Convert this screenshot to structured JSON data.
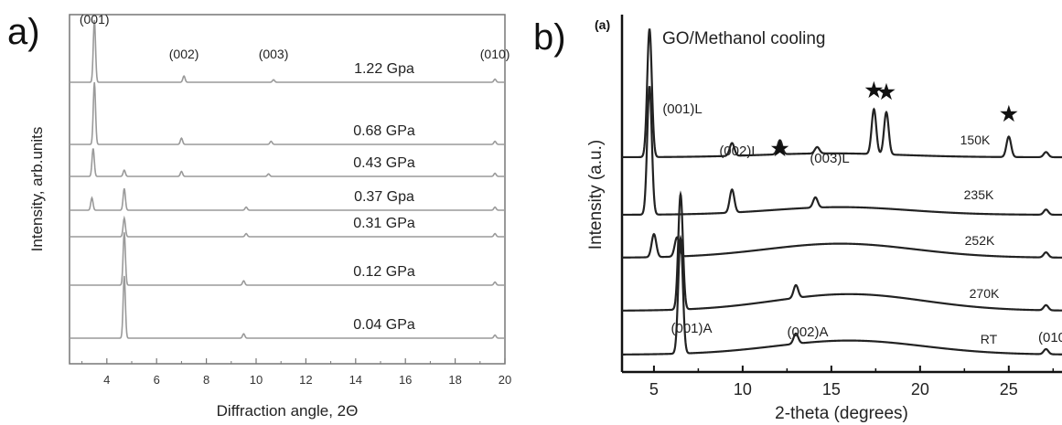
{
  "chart_data": [
    {
      "type": "line",
      "panel_label": "a)",
      "xlabel": "Diffraction angle, 2Θ",
      "ylabel": "Intensity, arb.units",
      "xlim": [
        2.5,
        20
      ],
      "xticks": [
        "4",
        "6",
        "8",
        "10",
        "12",
        "14",
        "16",
        "18",
        "20"
      ],
      "grid": false,
      "line_color": "#9a9a9a",
      "peak_labels": [
        {
          "text": "(001)",
          "x": 3.5
        },
        {
          "text": "(002)",
          "x": 7.1
        },
        {
          "text": "(003)",
          "x": 10.7
        },
        {
          "text": "(010)",
          "x": 19.6
        }
      ],
      "series": [
        {
          "label": "1.22 Gpa",
          "peaks": [
            {
              "x": 3.5,
              "h": 1.0
            },
            {
              "x": 7.1,
              "h": 0.1
            },
            {
              "x": 10.7,
              "h": 0.04
            },
            {
              "x": 19.6,
              "h": 0.05
            }
          ]
        },
        {
          "label": "0.68 GPa",
          "peaks": [
            {
              "x": 3.5,
              "h": 1.0
            },
            {
              "x": 7.0,
              "h": 0.1
            },
            {
              "x": 10.6,
              "h": 0.05
            },
            {
              "x": 19.6,
              "h": 0.05
            }
          ]
        },
        {
          "label": "0.43 GPa",
          "peaks": [
            {
              "x": 3.45,
              "h": 0.45
            },
            {
              "x": 4.7,
              "h": 0.1
            },
            {
              "x": 7.0,
              "h": 0.08
            },
            {
              "x": 10.5,
              "h": 0.04
            },
            {
              "x": 19.6,
              "h": 0.05
            }
          ]
        },
        {
          "label": "0.37 Gpa",
          "peaks": [
            {
              "x": 3.4,
              "h": 0.2
            },
            {
              "x": 4.7,
              "h": 0.35
            },
            {
              "x": 9.6,
              "h": 0.05
            },
            {
              "x": 19.6,
              "h": 0.05
            }
          ]
        },
        {
          "label": "0.31 GPa",
          "peaks": [
            {
              "x": 4.7,
              "h": 0.3
            },
            {
              "x": 9.6,
              "h": 0.05
            },
            {
              "x": 19.6,
              "h": 0.05
            }
          ]
        },
        {
          "label": "0.12 GPa",
          "peaks": [
            {
              "x": 4.7,
              "h": 0.85
            },
            {
              "x": 9.5,
              "h": 0.07
            },
            {
              "x": 19.6,
              "h": 0.05
            }
          ]
        },
        {
          "label": "0.04 GPa",
          "peaks": [
            {
              "x": 4.7,
              "h": 1.0
            },
            {
              "x": 9.5,
              "h": 0.07
            },
            {
              "x": 19.6,
              "h": 0.05
            }
          ]
        }
      ]
    },
    {
      "type": "line",
      "panel_label": "b)",
      "sub_label": "(a)",
      "title": "GO/Methanol cooling",
      "xlabel": "2-theta (degrees)",
      "ylabel": "Intensity (a.u.)",
      "xlim": [
        3.2,
        28
      ],
      "xticks": [
        "5",
        "10",
        "15",
        "20",
        "25"
      ],
      "grid": false,
      "line_color": "#222222",
      "peak_labels": [
        {
          "text": "(001)L",
          "x": 5.9
        },
        {
          "text": "(002)L",
          "x": 9.2
        },
        {
          "text": "(003)L",
          "x": 14.6
        },
        {
          "text": "(001)A",
          "x": 7.3
        },
        {
          "text": "(002)A",
          "x": 13.1
        },
        {
          "text": "(010",
          "x": 27.5
        }
      ],
      "star_markers": [
        12.1,
        17.4,
        18.1,
        25.0
      ],
      "series": [
        {
          "label": "150K",
          "peaks": [
            {
              "x": 4.75,
              "h": 1.0
            },
            {
              "x": 9.4,
              "h": 0.1
            },
            {
              "x": 12.1,
              "h": 0.11
            },
            {
              "x": 14.2,
              "h": 0.05
            },
            {
              "x": 17.4,
              "h": 0.35
            },
            {
              "x": 18.1,
              "h": 0.33
            },
            {
              "x": 25.0,
              "h": 0.16
            },
            {
              "x": 27.1,
              "h": 0.04
            }
          ]
        },
        {
          "label": "235K",
          "peaks": [
            {
              "x": 4.75,
              "h": 1.0
            },
            {
              "x": 9.4,
              "h": 0.18
            },
            {
              "x": 14.1,
              "h": 0.08
            },
            {
              "x": 27.1,
              "h": 0.04
            }
          ]
        },
        {
          "label": "252K",
          "peaks": [
            {
              "x": 5.0,
              "h": 0.18
            },
            {
              "x": 6.3,
              "h": 0.15
            },
            {
              "x": 27.1,
              "h": 0.04
            }
          ]
        },
        {
          "label": "270K",
          "peaks": [
            {
              "x": 6.5,
              "h": 0.9
            },
            {
              "x": 13.0,
              "h": 0.1
            },
            {
              "x": 27.1,
              "h": 0.04
            }
          ]
        },
        {
          "label": "RT",
          "peaks": [
            {
              "x": 6.5,
              "h": 0.9
            },
            {
              "x": 13.0,
              "h": 0.08
            },
            {
              "x": 27.1,
              "h": 0.04
            }
          ]
        }
      ]
    }
  ]
}
